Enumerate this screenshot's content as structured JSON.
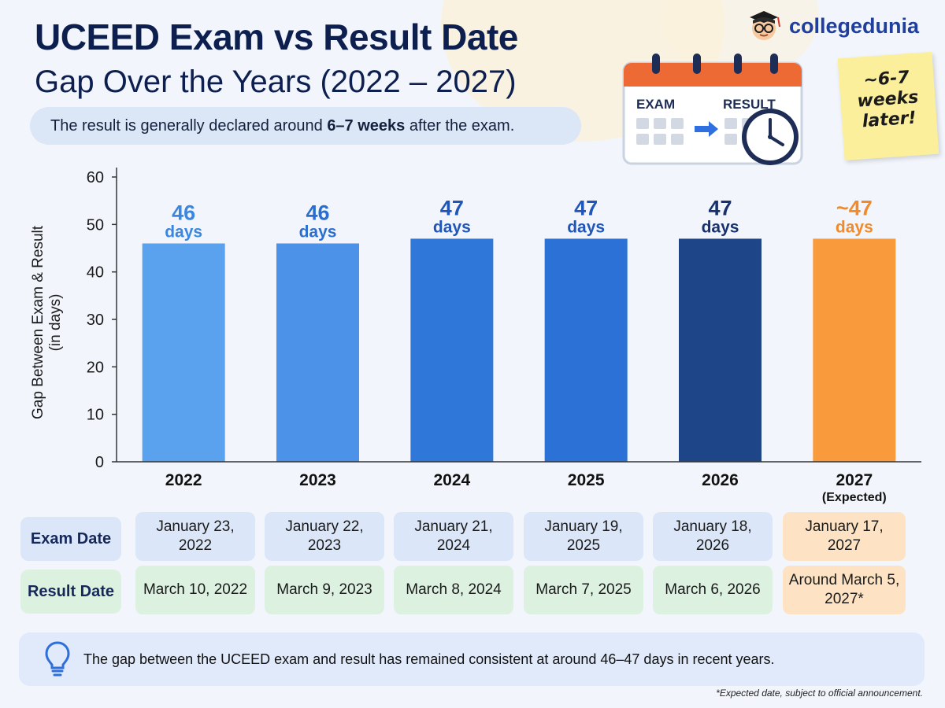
{
  "header": {
    "title": "UCEED Exam vs Result Date",
    "subtitle": "Gap Over the Years (2022 – 2027)",
    "summary_pre": "The result is generally declared around ",
    "summary_bold": "6–7 weeks",
    "summary_post": " after the exam."
  },
  "logo": {
    "text": "collegedunia"
  },
  "illustration": {
    "exam_label": "EXAM",
    "result_label": "RESULT",
    "sticky_note": "~6-7\nweeks\nlater!"
  },
  "chart_data": {
    "type": "bar",
    "ylabel": "Gap Between Exam & Result\n(in days)",
    "ylim": [
      0,
      60
    ],
    "yticks": [
      0,
      10,
      20,
      30,
      40,
      50,
      60
    ],
    "categories": [
      "2022",
      "2023",
      "2024",
      "2025",
      "2026",
      "2027"
    ],
    "category_sublabels": [
      "",
      "",
      "",
      "",
      "",
      "(Expected)"
    ],
    "values": [
      46,
      46,
      47,
      47,
      47,
      47
    ],
    "value_labels": [
      "46",
      "46",
      "47",
      "47",
      "47",
      "~47"
    ],
    "value_unit": "days",
    "bar_colors": [
      "#5aa2ee",
      "#4c92e8",
      "#2f78da",
      "#2c72d6",
      "#1d4587",
      "#f99a3d"
    ],
    "label_colors": [
      "#3a86e0",
      "#2a6fd0",
      "#1f56b8",
      "#1f56b8",
      "#16316b",
      "#f08a2a"
    ]
  },
  "dates_table": {
    "exam_label": "Exam Date",
    "result_label": "Result Date",
    "exam_dates": [
      "January 23, 2022",
      "January 22, 2023",
      "January 21, 2024",
      "January 19, 2025",
      "January 18, 2026",
      "January 17, 2027"
    ],
    "result_dates": [
      "March 10, 2022",
      "March 9, 2023",
      "March 8, 2024",
      "March 7, 2025",
      "March 6, 2026",
      "Around March 5, 2027*"
    ]
  },
  "note": {
    "text": "The gap between the UCEED exam and result has remained consistent at around 46–47 days in recent years.",
    "footnote": "*Expected date, subject to official announcement."
  }
}
